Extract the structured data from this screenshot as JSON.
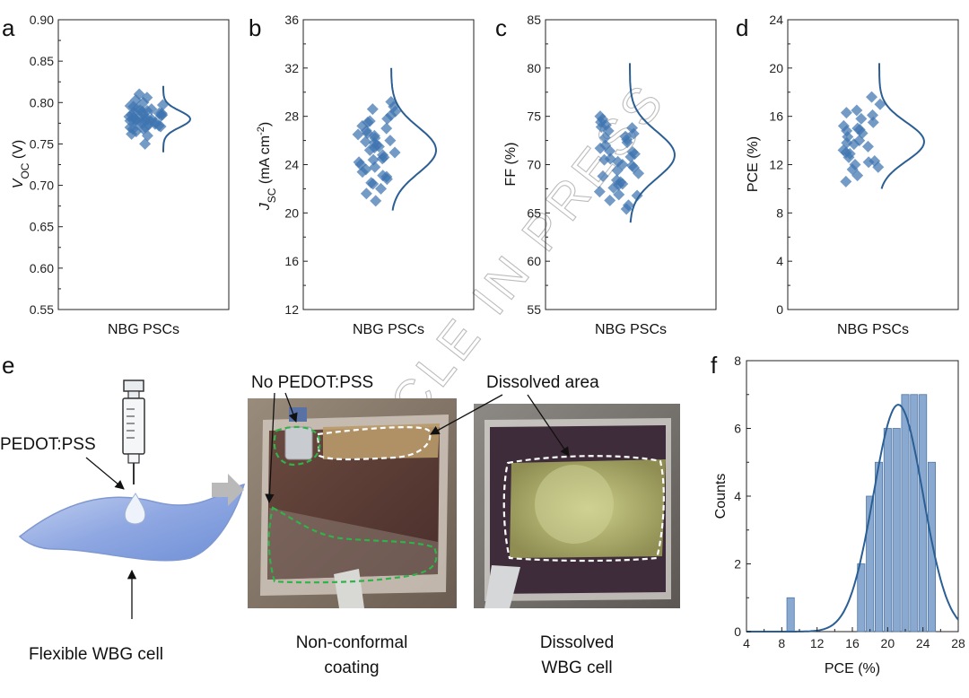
{
  "watermark": "ARTICLE IN PRESS",
  "panels": {
    "a": {
      "label": "a",
      "ylabel_main": "V",
      "ylabel_sub": "OC",
      "ylabel_unit": " (V)",
      "xlabel": "NBG PSCs",
      "ticks": [
        "0.55",
        "0.60",
        "0.65",
        "0.70",
        "0.75",
        "0.80",
        "0.85",
        "0.90"
      ]
    },
    "b": {
      "label": "b",
      "ylabel_main": "J",
      "ylabel_sub": "SC",
      "ylabel_unit": " (mA cm",
      "ylabel_sup": "-2",
      "ylabel_close": ")",
      "xlabel": "NBG PSCs",
      "ticks": [
        "12",
        "16",
        "20",
        "24",
        "28",
        "32",
        "36"
      ]
    },
    "c": {
      "label": "c",
      "ylabel": "FF (%)",
      "xlabel": "NBG PSCs",
      "ticks": [
        "55",
        "60",
        "65",
        "70",
        "75",
        "80",
        "85"
      ]
    },
    "d": {
      "label": "d",
      "ylabel": "PCE (%)",
      "xlabel": "NBG PSCs",
      "ticks": [
        "0",
        "4",
        "8",
        "12",
        "16",
        "20",
        "24"
      ]
    },
    "e": {
      "label": "e",
      "pedot_label": "PEDOT:PSS",
      "cell_label": "Flexible WBG cell",
      "no_pedot": "No PEDOT:PSS",
      "dissolved": "Dissolved area",
      "caption1_l1": "Non-conformal",
      "caption1_l2": "coating",
      "caption2_l1": "Dissolved",
      "caption2_l2": "WBG cell"
    },
    "f": {
      "label": "f",
      "xlabel": "PCE (%)",
      "ylabel": "Counts",
      "xticks": [
        "4",
        "8",
        "12",
        "16",
        "20",
        "24",
        "28"
      ],
      "yticks": [
        "0",
        "2",
        "4",
        "6",
        "8"
      ]
    }
  },
  "colors": {
    "marker": "#3f74b0",
    "curve": "#2b5f94",
    "bar": "#8aa9d0",
    "bar_edge": "#4f76a6",
    "dash_white": "#ffffff",
    "dash_green": "#2fb34a"
  },
  "chart_data": [
    {
      "type": "scatter",
      "panel": "a",
      "ylabel": "VOC (V)",
      "xlabel": "NBG PSCs",
      "ylim": [
        0.55,
        0.9
      ],
      "series": [
        {
          "values": [
            0.75,
            0.76,
            0.762,
            0.765,
            0.768,
            0.77,
            0.77,
            0.772,
            0.773,
            0.775,
            0.775,
            0.776,
            0.777,
            0.778,
            0.778,
            0.779,
            0.78,
            0.78,
            0.78,
            0.781,
            0.782,
            0.783,
            0.784,
            0.785,
            0.785,
            0.786,
            0.787,
            0.788,
            0.789,
            0.79,
            0.792,
            0.793,
            0.795,
            0.797,
            0.8,
            0.803,
            0.806,
            0.81,
            0.768,
            0.774,
            0.782,
            0.791,
            0.796,
            0.771,
            0.779,
            0.787
          ]
        }
      ],
      "distribution": {
        "mean": 0.78,
        "sd": 0.01,
        "range": [
          0.74,
          0.82
        ]
      }
    },
    {
      "type": "scatter",
      "panel": "b",
      "ylabel": "JSC (mA cm-2)",
      "xlabel": "NBG PSCs",
      "ylim": [
        12,
        36
      ],
      "series": [
        {
          "values": [
            21.0,
            21.6,
            22.0,
            22.4,
            22.8,
            23.1,
            23.4,
            23.6,
            23.8,
            24.0,
            24.2,
            24.4,
            24.6,
            24.8,
            25.0,
            25.2,
            25.4,
            25.6,
            25.8,
            26.0,
            26.2,
            26.4,
            26.6,
            26.8,
            27.0,
            27.2,
            27.5,
            27.8,
            28.1,
            28.4,
            28.8,
            29.2,
            23.0,
            24.5,
            25.5,
            26.5,
            27.6,
            22.5,
            25.9,
            28.6
          ]
        }
      ],
      "distribution": {
        "mean": 25.2,
        "sd": 1.9,
        "range": [
          20.2,
          32.0
        ]
      }
    },
    {
      "type": "scatter",
      "panel": "c",
      "ylabel": "FF (%)",
      "xlabel": "NBG PSCs",
      "ylim": [
        55,
        85
      ],
      "series": [
        {
          "values": [
            65.4,
            65.8,
            66.3,
            66.8,
            67.2,
            67.6,
            68.0,
            68.4,
            68.8,
            69.1,
            69.4,
            69.7,
            70.0,
            70.3,
            70.5,
            70.8,
            71.1,
            71.4,
            71.7,
            72.0,
            72.3,
            72.6,
            72.9,
            73.2,
            73.5,
            73.8,
            74.1,
            74.4,
            74.7,
            75.0,
            68.2,
            69.9,
            71.3,
            72.8,
            66.9,
            73.9,
            70.6,
            67.9
          ]
        }
      ],
      "distribution": {
        "mean": 71.0,
        "sd": 2.4,
        "range": [
          64.0,
          80.5
        ]
      }
    },
    {
      "type": "scatter",
      "panel": "d",
      "ylabel": "PCE (%)",
      "xlabel": "NBG PSCs",
      "ylim": [
        0,
        24
      ],
      "series": [
        {
          "values": [
            10.6,
            11.1,
            11.6,
            12.0,
            12.3,
            12.6,
            12.9,
            13.2,
            13.5,
            13.8,
            14.0,
            14.3,
            14.6,
            14.9,
            15.2,
            15.5,
            15.8,
            16.1,
            16.5,
            17.0,
            17.6,
            12.2,
            13.7,
            15.0,
            16.3,
            11.8,
            14.8,
            13.0
          ]
        }
      ],
      "distribution": {
        "mean": 13.9,
        "sd": 1.6,
        "range": [
          10.0,
          20.4
        ]
      }
    },
    {
      "type": "bar",
      "panel": "f",
      "xlabel": "PCE (%)",
      "ylabel": "Counts",
      "xlim": [
        4,
        28
      ],
      "ylim": [
        0,
        8
      ],
      "x": [
        9,
        17,
        18,
        19,
        20,
        21,
        22,
        23,
        24,
        25
      ],
      "values": [
        1,
        2,
        4,
        5,
        6,
        6,
        7,
        7,
        7,
        5
      ],
      "fit": {
        "type": "gaussian",
        "mean": 21.2,
        "sd": 2.8,
        "peak": 6.7
      }
    }
  ]
}
